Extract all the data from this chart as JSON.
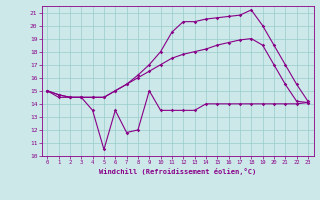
{
  "xlabel": "Windchill (Refroidissement éolien,°C)",
  "ylabel": "",
  "xlim": [
    -0.5,
    23.5
  ],
  "ylim": [
    10,
    21.5
  ],
  "yticks": [
    10,
    11,
    12,
    13,
    14,
    15,
    16,
    17,
    18,
    19,
    20,
    21
  ],
  "xticks": [
    0,
    1,
    2,
    3,
    4,
    5,
    6,
    7,
    8,
    9,
    10,
    11,
    12,
    13,
    14,
    15,
    16,
    17,
    18,
    19,
    20,
    21,
    22,
    23
  ],
  "background_color": "#cce8e8",
  "line_color": "#880088",
  "grid_color": "#99cccc",
  "series": [
    {
      "x": [
        0,
        1,
        2,
        3,
        4,
        5,
        6,
        7,
        8,
        9,
        10,
        11,
        12,
        13,
        14,
        15,
        16,
        17,
        18,
        19,
        20,
        21,
        22,
        23
      ],
      "y": [
        15.0,
        14.5,
        14.5,
        14.5,
        13.5,
        10.5,
        13.5,
        11.8,
        12.0,
        15.0,
        13.5,
        13.5,
        13.5,
        13.5,
        14.0,
        14.0,
        14.0,
        14.0,
        14.0,
        14.0,
        14.0,
        14.0,
        14.0,
        14.1
      ]
    },
    {
      "x": [
        0,
        1,
        2,
        3,
        4,
        5,
        6,
        7,
        8,
        9,
        10,
        11,
        12,
        13,
        14,
        15,
        16,
        17,
        18,
        19,
        20,
        21,
        22,
        23
      ],
      "y": [
        15.0,
        14.7,
        14.5,
        14.5,
        14.5,
        14.5,
        15.0,
        15.5,
        16.0,
        16.5,
        17.0,
        17.5,
        17.8,
        18.0,
        18.2,
        18.5,
        18.7,
        18.9,
        19.0,
        18.5,
        17.0,
        15.5,
        14.2,
        14.1
      ]
    },
    {
      "x": [
        0,
        1,
        2,
        3,
        4,
        5,
        6,
        7,
        8,
        9,
        10,
        11,
        12,
        13,
        14,
        15,
        16,
        17,
        18,
        19,
        20,
        21,
        22,
        23
      ],
      "y": [
        15.0,
        14.7,
        14.5,
        14.5,
        14.5,
        14.5,
        15.0,
        15.5,
        16.2,
        17.0,
        18.0,
        19.5,
        20.3,
        20.3,
        20.5,
        20.6,
        20.7,
        20.8,
        21.2,
        20.0,
        18.5,
        17.0,
        15.5,
        14.2
      ]
    }
  ]
}
